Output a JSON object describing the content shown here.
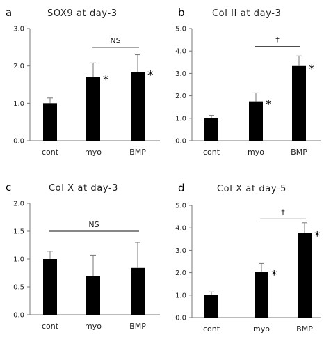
{
  "chart_data": [
    {
      "type": "bar",
      "panel_label": "a",
      "title": "SOX9 at day-3",
      "categories": [
        "cont",
        "myo",
        "BMP"
      ],
      "values": [
        1.0,
        1.71,
        1.84
      ],
      "errors": [
        0.14,
        0.37,
        0.46
      ],
      "significant": [
        false,
        true,
        true
      ],
      "yticks": [
        "0.0",
        "1.0",
        "2.0",
        "3.0"
      ],
      "ylim": [
        0,
        3.0
      ],
      "bracket": {
        "from": 1,
        "to": 2,
        "label": "NS",
        "y": 2.5
      }
    },
    {
      "type": "bar",
      "panel_label": "b",
      "title": "Col II at day-3",
      "categories": [
        "cont",
        "myo",
        "BMP"
      ],
      "values": [
        1.0,
        1.75,
        3.33
      ],
      "errors": [
        0.13,
        0.38,
        0.45
      ],
      "significant": [
        false,
        true,
        true
      ],
      "yticks": [
        "0.0",
        "1.0",
        "2.0",
        "3.0",
        "4.0",
        "5.0"
      ],
      "ylim": [
        0,
        5.0
      ],
      "bracket": {
        "from": 1,
        "to": 2,
        "label": "†",
        "y": 4.2
      }
    },
    {
      "type": "bar",
      "panel_label": "c",
      "title": "Col X at day-3",
      "categories": [
        "cont",
        "myo",
        "BMP"
      ],
      "values": [
        1.0,
        0.69,
        0.84
      ],
      "errors": [
        0.14,
        0.38,
        0.46
      ],
      "significant": [
        false,
        false,
        false
      ],
      "yticks": [
        "0.0",
        "0.5",
        "1.0",
        "1.5",
        "2.0"
      ],
      "ylim": [
        0,
        2.0
      ],
      "bracket": {
        "from": 0,
        "to": 2,
        "label": "NS",
        "y": 1.5
      }
    },
    {
      "type": "bar",
      "panel_label": "d",
      "title": "Col X at day-5",
      "categories": [
        "cont",
        "myo",
        "BMP"
      ],
      "values": [
        1.0,
        2.04,
        3.78
      ],
      "errors": [
        0.14,
        0.37,
        0.45
      ],
      "significant": [
        false,
        true,
        true
      ],
      "yticks": [
        "0.0",
        "1.0",
        "2.0",
        "3.0",
        "4.0",
        "5.0"
      ],
      "ylim": [
        0,
        5.0
      ],
      "bracket": {
        "from": 1,
        "to": 2,
        "label": "†",
        "y": 4.4
      }
    }
  ],
  "marker": "*",
  "colors": {
    "bar": "#000000",
    "axis": "#777777",
    "text": "#222222"
  }
}
